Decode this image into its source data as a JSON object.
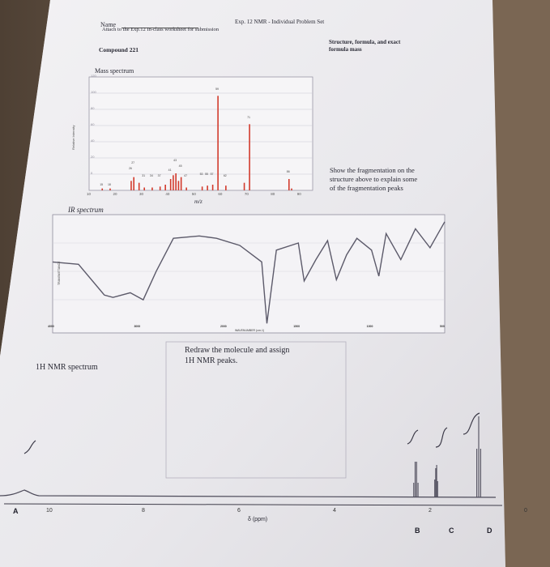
{
  "header": {
    "name_label": "Name",
    "title": "Exp. 12 NMR - Individual Problem Set",
    "instruction": "Attach to the Exp.12 In-class worksheet for submission"
  },
  "compound": "Compound 221",
  "structure_box": {
    "line1": "Structure, formula, and exact",
    "line2": "formula mass"
  },
  "fragmentation_note": {
    "line1": "Show the fragmentation on the",
    "line2": "structure above to explain some",
    "line3": "of the fragmentation peaks"
  },
  "mass_spectrum": {
    "title": "Mass spectrum",
    "ylabel": "Relative Intensity",
    "xlabel": "m/z",
    "y_ticks": [
      "120",
      "100",
      "80",
      "60",
      "40",
      "20",
      "0"
    ],
    "x_ticks": [
      "10",
      "20",
      "30",
      "40",
      "50",
      "60",
      "70",
      "80",
      "90"
    ],
    "peak_labels": [
      "15",
      "18",
      "26",
      "27",
      "31",
      "34",
      "37",
      "41",
      "43",
      "45",
      "47",
      "53",
      "55",
      "57",
      "59",
      "62",
      "71",
      "86"
    ]
  },
  "chart_data": [
    {
      "type": "bar",
      "title": "Mass spectrum",
      "xlabel": "m/z",
      "ylabel": "Relative Intensity",
      "xlim": [
        10,
        95
      ],
      "ylim": [
        0,
        120
      ],
      "x": [
        15,
        18,
        26,
        27,
        29,
        31,
        34,
        37,
        39,
        41,
        42,
        43,
        44,
        45,
        47,
        53,
        55,
        57,
        59,
        62,
        69,
        71,
        86,
        87
      ],
      "values": [
        2,
        2,
        10,
        14,
        8,
        3,
        3,
        4,
        6,
        12,
        16,
        18,
        10,
        14,
        3,
        4,
        5,
        6,
        100,
        5,
        8,
        70,
        12,
        2
      ]
    },
    {
      "type": "line",
      "title": "IR spectrum",
      "xlabel": "WAVENUMBER (cm-1)",
      "x_ticks": [
        "4000",
        "3000",
        "2000",
        "1500",
        "1000",
        "500"
      ],
      "x": [
        4000,
        3700,
        3400,
        3300,
        3100,
        2950,
        2800,
        2600,
        2300,
        2100,
        1900,
        1750,
        1715,
        1650,
        1500,
        1460,
        1380,
        1300,
        1240,
        1170,
        1100,
        1000,
        950,
        900,
        800,
        700,
        600,
        500
      ],
      "values": [
        60,
        58,
        32,
        30,
        34,
        28,
        52,
        80,
        82,
        80,
        74,
        60,
        8,
        70,
        76,
        44,
        62,
        78,
        45,
        66,
        80,
        70,
        48,
        84,
        62,
        88,
        72,
        94
      ]
    },
    {
      "type": "line",
      "title": "1H NMR spectrum",
      "xlabel": "δ (ppm)",
      "x_ticks": [
        "10",
        "8",
        "6",
        "4",
        "2",
        "0"
      ],
      "peaks": [
        {
          "label": "B",
          "shift": 2.3,
          "multiplicity": "quartet"
        },
        {
          "label": "C",
          "shift": 1.9,
          "multiplicity": "singlet"
        },
        {
          "label": "D",
          "shift": 1.0,
          "multiplicity": "triplet"
        }
      ]
    }
  ],
  "ir_spectrum": {
    "title": "IR spectrum",
    "ylabel": "TRANSMITTANCE",
    "xlabel": "WAVENUMBER (cm-1)",
    "x_ticks": [
      "4000",
      "3000",
      "2000",
      "1500",
      "1000",
      "500"
    ]
  },
  "nmr_box": {
    "line1": "Redraw the molecule and assign",
    "line2": "1H NMR peaks."
  },
  "nmr_spectrum": {
    "title": "1H NMR spectrum",
    "xlabel": "δ (ppm)",
    "x_ticks": [
      "10",
      "8",
      "6",
      "4",
      "2",
      "0"
    ],
    "peak_letters": [
      "A",
      "B",
      "C",
      "D"
    ]
  }
}
